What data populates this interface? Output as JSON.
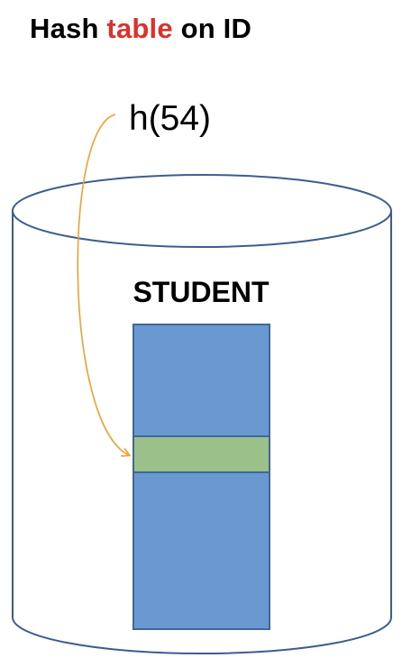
{
  "title": {
    "part1": "Hash ",
    "highlight": "table",
    "part2": " on ID"
  },
  "hash_call": "h(54)",
  "table_name": "STUDENT",
  "colors": {
    "highlight_text": "#e0302a",
    "cylinder_stroke": "#3a5f8f",
    "table_fill": "#6a98d0",
    "table_stroke": "#41679a",
    "row_fill": "#9bc08a",
    "row_stroke": "#41679a",
    "arrow": "#f0a030"
  }
}
